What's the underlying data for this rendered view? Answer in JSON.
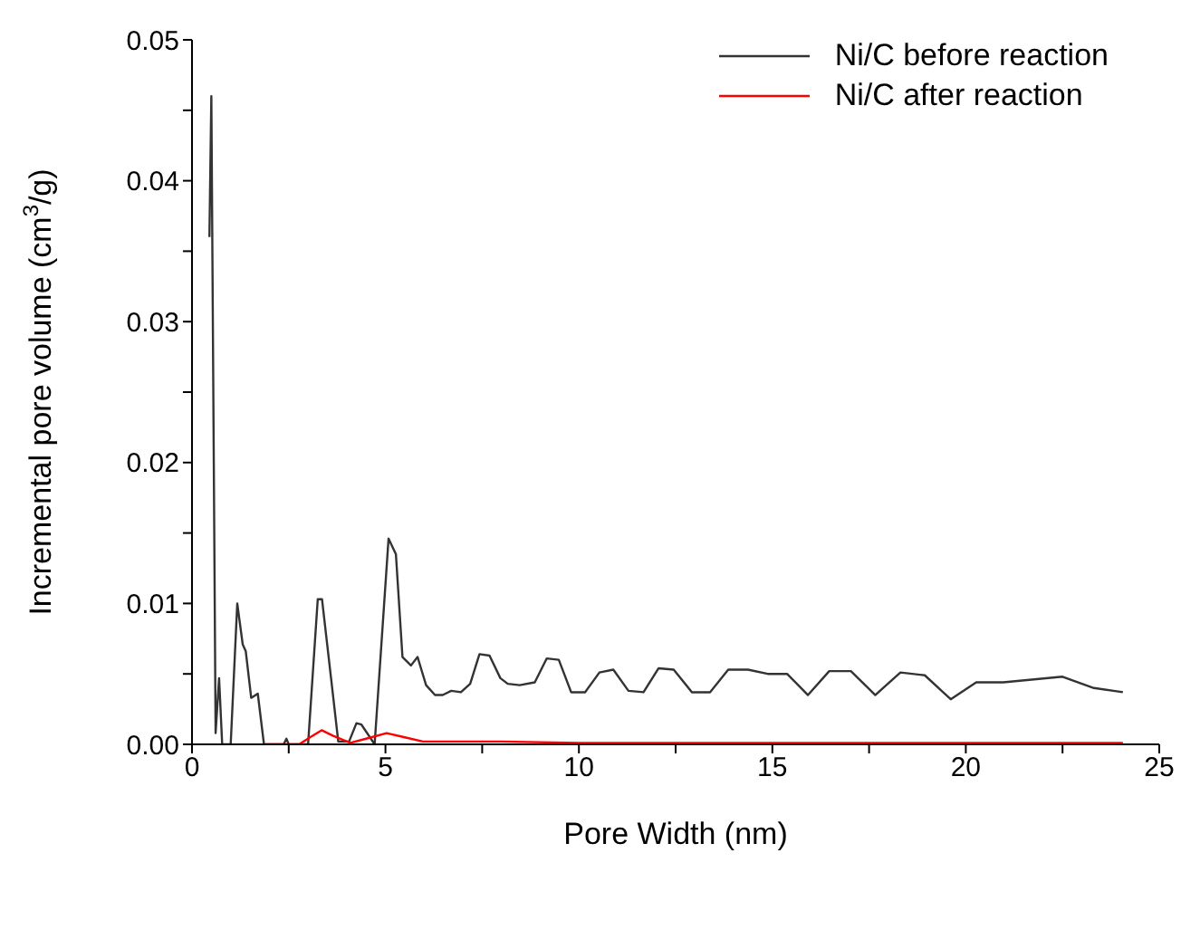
{
  "chart_data": {
    "type": "line",
    "xlabel": "Pore Width (nm)",
    "ylabel": "Incremental pore volume (cm$^{3}$/g)",
    "xlim": [
      0,
      25
    ],
    "xticks": [
      0,
      {
        "value": 2.5,
        "label": null
      },
      5,
      {
        "value": 7.5,
        "label": null
      },
      10,
      {
        "value": 12.5,
        "label": null
      },
      15,
      {
        "value": 17.5,
        "label": null
      },
      20,
      {
        "value": 22.5,
        "label": null
      },
      25
    ],
    "ylim": [
      0,
      0.05
    ],
    "yticks": [
      {
        "value": 0,
        "label": "0.00"
      },
      {
        "value": 0.005,
        "label": null
      },
      {
        "value": 0.01,
        "label": "0.01"
      },
      {
        "value": 0.015,
        "label": null
      },
      {
        "value": 0.02,
        "label": "0.02"
      },
      {
        "value": 0.025,
        "label": null
      },
      {
        "value": 0.03,
        "label": "0.03"
      },
      {
        "value": 0.035,
        "label": null
      },
      {
        "value": 0.04,
        "label": "0.04"
      },
      {
        "value": 0.045,
        "label": null
      },
      {
        "value": 0.05,
        "label": "0.05"
      }
    ],
    "grid": false,
    "legend": "top right",
    "marker": "none",
    "line_style": "solid",
    "series": [
      {
        "name": "Ni/C before reaction",
        "color": "#333333",
        "x": [
          0.45,
          0.5,
          0.61,
          0.7,
          0.78,
          1.0,
          1.17,
          1.31,
          1.39,
          1.53,
          1.7,
          1.86,
          2.37,
          2.44,
          2.5,
          3.0,
          3.25,
          3.36,
          3.59,
          3.78,
          4.06,
          4.25,
          4.38,
          4.72,
          5.08,
          5.27,
          5.44,
          5.66,
          5.83,
          6.05,
          6.28,
          6.48,
          6.7,
          6.95,
          7.19,
          7.43,
          7.69,
          7.97,
          8.16,
          8.47,
          8.86,
          9.17,
          9.48,
          9.8,
          10.16,
          10.53,
          10.89,
          11.28,
          11.67,
          12.06,
          12.45,
          12.92,
          13.39,
          13.86,
          14.37,
          14.88,
          15.38,
          15.92,
          16.47,
          17.03,
          17.66,
          18.31,
          18.94,
          19.61,
          20.27,
          20.97,
          22.5,
          23.31,
          24.06
        ],
        "values": [
          0.036,
          0.046,
          0.0008,
          0.0047,
          0,
          0,
          0.01,
          0.0071,
          0.0066,
          0.0033,
          0.0036,
          0,
          0,
          0.0004,
          0,
          0,
          0.0103,
          0.0103,
          0.0048,
          0.0002,
          0.0002,
          0.0015,
          0.0014,
          0,
          0.0146,
          0.0135,
          0.0062,
          0.0056,
          0.0062,
          0.0042,
          0.0035,
          0.0035,
          0.0038,
          0.0037,
          0.0043,
          0.0064,
          0.0063,
          0.0047,
          0.0043,
          0.0042,
          0.0044,
          0.0061,
          0.006,
          0.0037,
          0.0037,
          0.0051,
          0.0053,
          0.0038,
          0.0037,
          0.0054,
          0.0053,
          0.0037,
          0.0037,
          0.0053,
          0.0053,
          0.005,
          0.005,
          0.0035,
          0.0052,
          0.0052,
          0.0035,
          0.0051,
          0.0049,
          0.0032,
          0.0044,
          0.0044,
          0.0048,
          0.004,
          0.0037
        ]
      },
      {
        "name": "Ni/C after reaction",
        "color": "#ff0000",
        "x": [
          1.9,
          2.77,
          3.05,
          3.35,
          3.65,
          4.09,
          4.5,
          5.03,
          5.5,
          5.97,
          7,
          8,
          10,
          15,
          20,
          24.06
        ],
        "values": [
          0,
          0,
          0.0005,
          0.001,
          0.0006,
          0.0001,
          0.0004,
          0.0008,
          0.0005,
          0.0002,
          0.0002,
          0.0002,
          0.0001,
          0.0001,
          0.0001,
          0.0001
        ]
      }
    ]
  }
}
